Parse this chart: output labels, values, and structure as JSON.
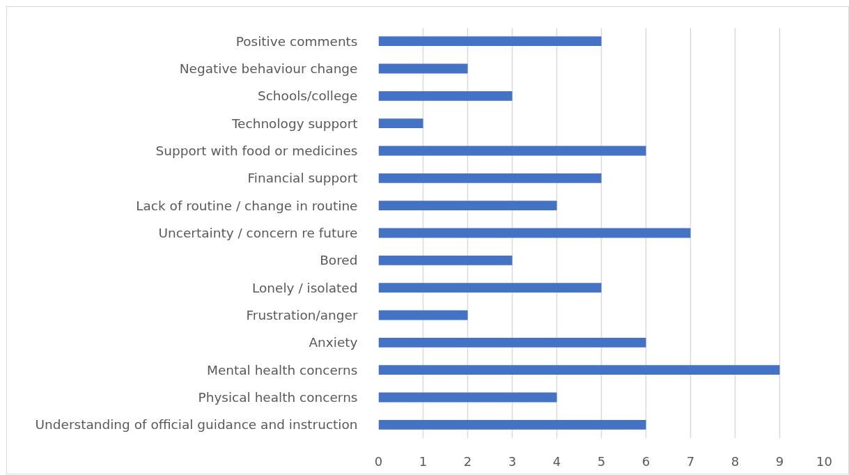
{
  "chart_data": {
    "type": "bar",
    "orientation": "horizontal",
    "categories": [
      "Positive comments",
      "Negative behaviour change",
      "Schools/college",
      "Technology support",
      "Support with food or medicines",
      "Financial support",
      "Lack of routine / change in routine",
      "Uncertainty / concern re future",
      "Bored",
      "Lonely / isolated",
      "Frustration/anger",
      "Anxiety",
      "Mental health concerns",
      "Physical health concerns",
      "Understanding of official guidance and instruction"
    ],
    "values": [
      5,
      2,
      3,
      1,
      6,
      5,
      4,
      7,
      3,
      5,
      2,
      6,
      9,
      4,
      6
    ],
    "color": "#4472c4",
    "xlim": [
      0,
      10
    ],
    "xticks": [
      0,
      1,
      2,
      3,
      4,
      5,
      6,
      7,
      8,
      9,
      10
    ],
    "grid": "x"
  }
}
